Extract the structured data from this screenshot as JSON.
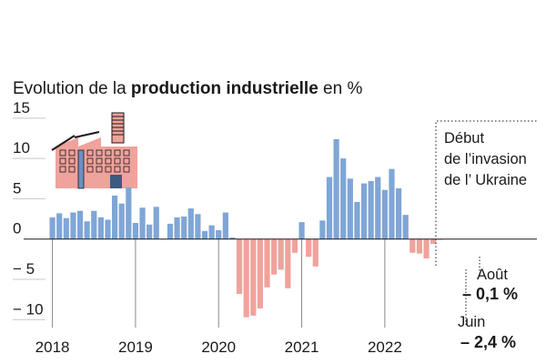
{
  "chart_data": {
    "type": "bar",
    "title_prefix": "Evolution de la ",
    "title_bold": "production industrielle",
    "title_suffix": " en %",
    "xlabel": "",
    "ylabel": "",
    "ylim": [
      -12,
      16
    ],
    "yticks": [
      15,
      10,
      5,
      0,
      -5,
      -10
    ],
    "ytick_labels": [
      "15",
      "10",
      "5",
      "0",
      "− 5",
      "− 10"
    ],
    "year_labels": [
      "2018",
      "2019",
      "2020",
      "2021",
      "2022"
    ],
    "colors": {
      "positive": "#7fa6d6",
      "negative": "#f0a29c",
      "zero": "#1a1a1a",
      "grid": "#c8c8c8"
    },
    "series": [
      {
        "values": [
          2.7,
          3.2,
          2.6,
          3.3,
          3.5,
          2.2,
          3.5,
          2.7,
          2.4,
          5.4,
          4.4,
          6.4,
          2.0,
          3.9,
          1.8,
          4.0,
          0.0,
          1.9,
          2.7,
          2.8,
          3.8,
          3.1,
          1.0,
          1.7,
          1.1,
          3.3,
          0.2,
          -6.8,
          -9.7,
          -9.5,
          -8.6,
          -6.0,
          -4.4,
          -3.8,
          -6.1,
          -1.7,
          2.1,
          -2.2,
          -3.4,
          2.3,
          7.7,
          12.4,
          10.0,
          7.5,
          4.6,
          6.9,
          7.2,
          7.7,
          6.1,
          8.7,
          6.3,
          3.0,
          -1.7,
          -1.8,
          -2.4,
          -0.6,
          -0.1
        ]
      }
    ],
    "annotations": {
      "invasion": [
        "Début",
        "de l’invasion",
        "de l’ Ukraine"
      ],
      "aout_label": "Août",
      "aout_value": "– 0,1 %",
      "juin_label": "Juin",
      "juin_value": "– 2,4 %"
    }
  }
}
